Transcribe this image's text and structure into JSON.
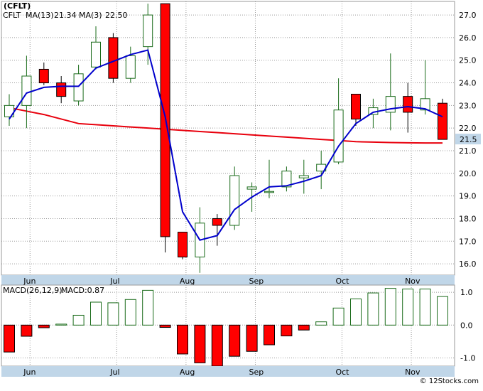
{
  "title": "(CFLT)",
  "footer": "© 12Stocks.com",
  "colors": {
    "up_candle_stroke": "#1a6b1a",
    "down_candle_fill": "#ff0000",
    "ma13": "#e8000d",
    "ma3": "#0000cc",
    "axis_band": "#c0d6e8",
    "grid": "#9a9a9a",
    "price_label_bg": "#c0d6e8"
  },
  "chart_data": [
    {
      "type": "candlestick",
      "legend": {
        "ticker": "CFLT",
        "ma13_label": "MA(13)",
        "ma13_value": "21.34",
        "ma3_label": "MA(3)",
        "ma3_value": "22.50"
      },
      "ylim": [
        15.5,
        27.6
      ],
      "yticks": [
        "16.0",
        "17.0",
        "18.0",
        "19.0",
        "20.0",
        "21.0",
        "22.0",
        "23.0",
        "24.0",
        "25.0",
        "26.0",
        "27.0"
      ],
      "ytick_values": [
        16,
        17,
        18,
        19,
        20,
        21,
        22,
        23,
        24,
        25,
        26,
        27
      ],
      "month_labels": [
        "Jun",
        "Jul",
        "Aug",
        "Sep",
        "Oct",
        "Nov"
      ],
      "month_positions": [
        1.2,
        6.2,
        10.2,
        14.2,
        19.2,
        23.2
      ],
      "last_price_label": "21.5",
      "last_price": 21.5,
      "candles": [
        {
          "o": 22.5,
          "h": 23.5,
          "l": 22.1,
          "c": 23.0
        },
        {
          "o": 23.0,
          "h": 25.2,
          "l": 22.0,
          "c": 24.3
        },
        {
          "o": 24.6,
          "h": 24.9,
          "l": 23.9,
          "c": 24.0
        },
        {
          "o": 24.0,
          "h": 24.3,
          "l": 23.1,
          "c": 23.4
        },
        {
          "o": 23.2,
          "h": 24.8,
          "l": 23.0,
          "c": 24.4
        },
        {
          "o": 24.7,
          "h": 26.5,
          "l": 24.6,
          "c": 25.8
        },
        {
          "o": 26.0,
          "h": 26.2,
          "l": 24.0,
          "c": 24.2
        },
        {
          "o": 24.2,
          "h": 25.6,
          "l": 24.0,
          "c": 25.2
        },
        {
          "o": 25.6,
          "h": 27.5,
          "l": 24.8,
          "c": 27.0
        },
        {
          "o": 27.5,
          "h": 27.5,
          "l": 16.5,
          "c": 17.2
        },
        {
          "o": 17.4,
          "h": 17.4,
          "l": 16.2,
          "c": 16.3
        },
        {
          "o": 16.3,
          "h": 18.5,
          "l": 15.6,
          "c": 17.8
        },
        {
          "o": 18.0,
          "h": 18.2,
          "l": 16.8,
          "c": 17.7
        },
        {
          "o": 17.7,
          "h": 20.3,
          "l": 17.5,
          "c": 19.9
        },
        {
          "o": 19.3,
          "h": 19.6,
          "l": 18.3,
          "c": 19.4
        },
        {
          "o": 19.2,
          "h": 20.6,
          "l": 18.9,
          "c": 19.2
        },
        {
          "o": 19.4,
          "h": 20.3,
          "l": 19.2,
          "c": 20.1
        },
        {
          "o": 19.8,
          "h": 20.6,
          "l": 19.1,
          "c": 19.9
        },
        {
          "o": 20.1,
          "h": 21.0,
          "l": 19.3,
          "c": 20.4
        },
        {
          "o": 20.5,
          "h": 24.2,
          "l": 20.4,
          "c": 22.8
        },
        {
          "o": 23.5,
          "h": 23.5,
          "l": 22.1,
          "c": 22.4
        },
        {
          "o": 22.6,
          "h": 23.3,
          "l": 22.0,
          "c": 22.9
        },
        {
          "o": 22.7,
          "h": 25.3,
          "l": 21.9,
          "c": 23.4
        },
        {
          "o": 23.4,
          "h": 24.0,
          "l": 21.8,
          "c": 22.7
        },
        {
          "o": 22.8,
          "h": 25.0,
          "l": 22.6,
          "c": 23.3
        },
        {
          "o": 23.1,
          "h": 23.3,
          "l": 21.5,
          "c": 21.5
        }
      ],
      "ma13_values": [
        22.9,
        22.75,
        22.6,
        22.4,
        22.2,
        22.15,
        22.1,
        22.05,
        22.0,
        21.95,
        21.9,
        21.85,
        21.8,
        21.75,
        21.7,
        21.65,
        21.6,
        21.55,
        21.5,
        21.45,
        21.4,
        21.38,
        21.36,
        21.35,
        21.34,
        21.34
      ],
      "ma3_values": [
        22.4,
        23.55,
        23.8,
        23.85,
        23.85,
        24.65,
        24.95,
        25.25,
        25.45,
        22.5,
        18.3,
        17.05,
        17.25,
        18.4,
        18.95,
        19.4,
        19.45,
        19.65,
        19.9,
        21.2,
        22.2,
        22.7,
        22.85,
        22.95,
        22.85,
        22.5
      ]
    },
    {
      "type": "bar",
      "legend": {
        "macd_label": "MACD(26,12,9)",
        "macd_value_label": "MACD:0.87"
      },
      "ylim": [
        -1.25,
        1.22
      ],
      "yticks": [
        "1.0",
        "0.0",
        "-1.0"
      ],
      "ytick_values": [
        1.0,
        0.0,
        -1.0
      ],
      "month_labels": [
        "Jun",
        "Jul",
        "Aug",
        "Sep",
        "Oct",
        "Nov"
      ],
      "values": [
        -0.82,
        -0.34,
        -0.08,
        0.03,
        0.3,
        0.7,
        0.68,
        0.78,
        1.06,
        -0.07,
        -0.88,
        -1.15,
        -1.25,
        -0.95,
        -0.8,
        -0.6,
        -0.33,
        -0.15,
        0.1,
        0.52,
        0.8,
        0.98,
        1.12,
        1.1,
        1.1,
        0.87
      ]
    }
  ]
}
